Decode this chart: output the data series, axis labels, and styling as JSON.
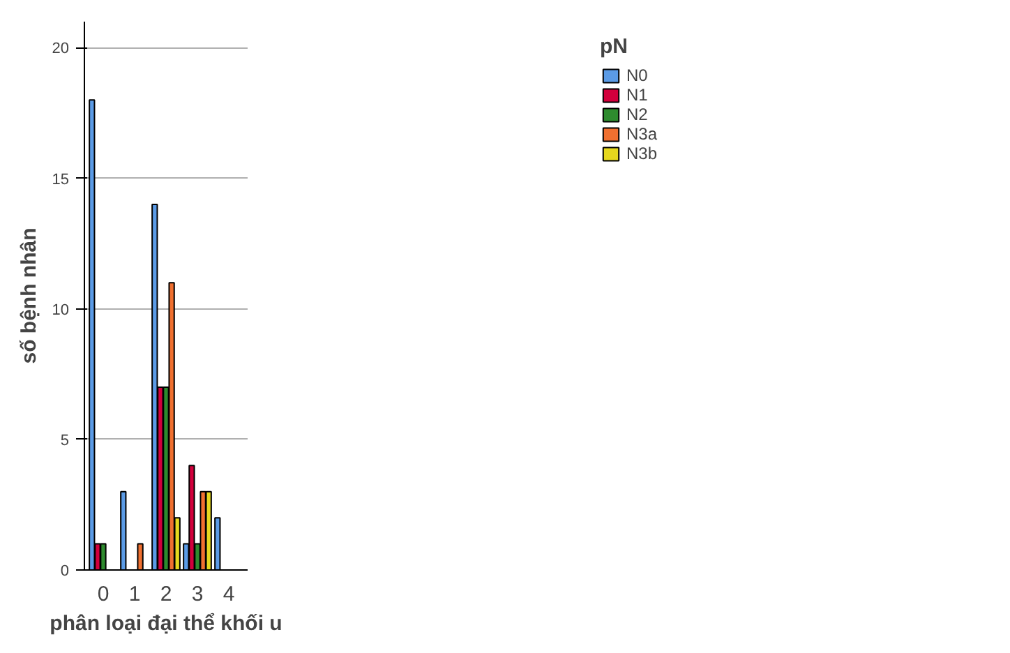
{
  "chart_data": {
    "type": "bar",
    "xlabel": "phân loại đại thể khối u",
    "ylabel": "số bệnh nhân",
    "legend_title": "pN",
    "categories": [
      "0",
      "1",
      "2",
      "3",
      "4"
    ],
    "series": [
      {
        "name": "N0",
        "color": "#5b9be6",
        "values": [
          18,
          3,
          14,
          1,
          2
        ]
      },
      {
        "name": "N1",
        "color": "#d2003c",
        "values": [
          1,
          null,
          7,
          4,
          null
        ]
      },
      {
        "name": "N2",
        "color": "#2e8b2e",
        "values": [
          1,
          null,
          7,
          1,
          null
        ]
      },
      {
        "name": "N3a",
        "color": "#f07030",
        "values": [
          null,
          1,
          11,
          3,
          null
        ]
      },
      {
        "name": "N3b",
        "color": "#e6d81e",
        "values": [
          null,
          null,
          2,
          3,
          null
        ]
      }
    ],
    "ylim": [
      0,
      21
    ],
    "yticks": [
      0,
      5,
      10,
      15,
      20
    ],
    "grid": "y",
    "legend": "top right"
  }
}
